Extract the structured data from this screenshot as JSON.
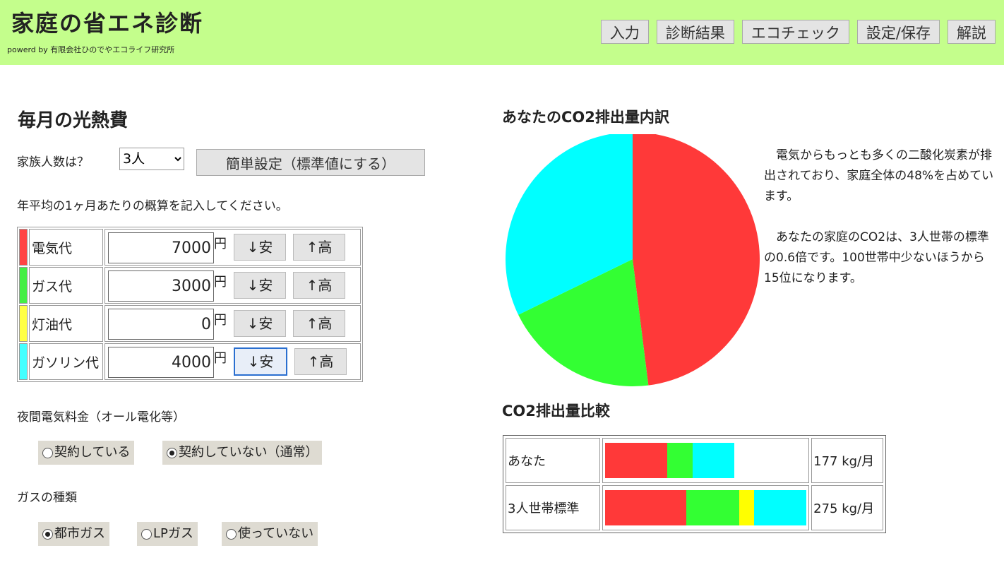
{
  "header": {
    "title": "家庭の省エネ診断",
    "powered": "powerd by 有限会社ひのでやエコライフ研究所",
    "nav": [
      "入力",
      "診断結果",
      "エコチェック",
      "設定/保存",
      "解説"
    ]
  },
  "left": {
    "heading": "毎月の光熱費",
    "family_label": "家族人数は？",
    "family_value": "3人",
    "easy_button": "簡単設定（標準値にする）",
    "instruction": "年平均の1ヶ月あたりの概算を記入してください。",
    "rows": [
      {
        "label": "電気代",
        "value": "7000",
        "color": "#ff4444"
      },
      {
        "label": "ガス代",
        "value": "3000",
        "color": "#44ee44"
      },
      {
        "label": "灯油代",
        "value": "0",
        "color": "#ffff44"
      },
      {
        "label": "ガソリン代",
        "value": "4000",
        "color": "#44ffff"
      }
    ],
    "yen": "円",
    "down": "↓安",
    "up": "↑高",
    "night_label": "夜間電気料金（オール電化等）",
    "night_options": [
      "契約している",
      "契約していない（通常）"
    ],
    "night_selected": 1,
    "gas_label": "ガスの種類",
    "gas_options": [
      "都市ガス",
      "LPガス",
      "使っていない"
    ],
    "gas_selected": 0
  },
  "right": {
    "pie_title": "あなたのCO2排出量内訳",
    "text1": "　電気からもっとも多くの二酸化炭素が排出されており、家庭全体の48%を占めています。",
    "text2": "　あなたの家庭のCO2は、3人世帯の標準の0.6倍です。100世帯中少ないほうから15位になります。",
    "compare_title": "CO2排出量比較"
  },
  "chart_data": [
    {
      "type": "pie",
      "title": "あなたのCO2排出量内訳",
      "slices": [
        {
          "category": "電気",
          "value": 85,
          "color": "#ff3939"
        },
        {
          "category": "ガス",
          "value": 35,
          "color": "#33ff33"
        },
        {
          "category": "灯油",
          "value": 0,
          "color": "#ffff00"
        },
        {
          "category": "ガソリン",
          "value": 57,
          "color": "#00ffff"
        }
      ]
    },
    {
      "type": "bar",
      "title": "CO2排出量比較",
      "orientation": "horizontal",
      "stacked": true,
      "max": 275,
      "categories": [
        "あなた",
        "3人世帯標準"
      ],
      "totals": [
        "177 kg/月",
        "275 kg/月"
      ],
      "series": [
        {
          "category": "電気",
          "color": "#ff3939",
          "values": [
            85,
            111
          ]
        },
        {
          "category": "ガス",
          "color": "#33ff33",
          "values": [
            35,
            72
          ]
        },
        {
          "category": "灯油",
          "color": "#ffff00",
          "values": [
            0,
            21
          ]
        },
        {
          "category": "ガソリン",
          "color": "#00ffff",
          "values": [
            57,
            71
          ]
        }
      ]
    }
  ]
}
